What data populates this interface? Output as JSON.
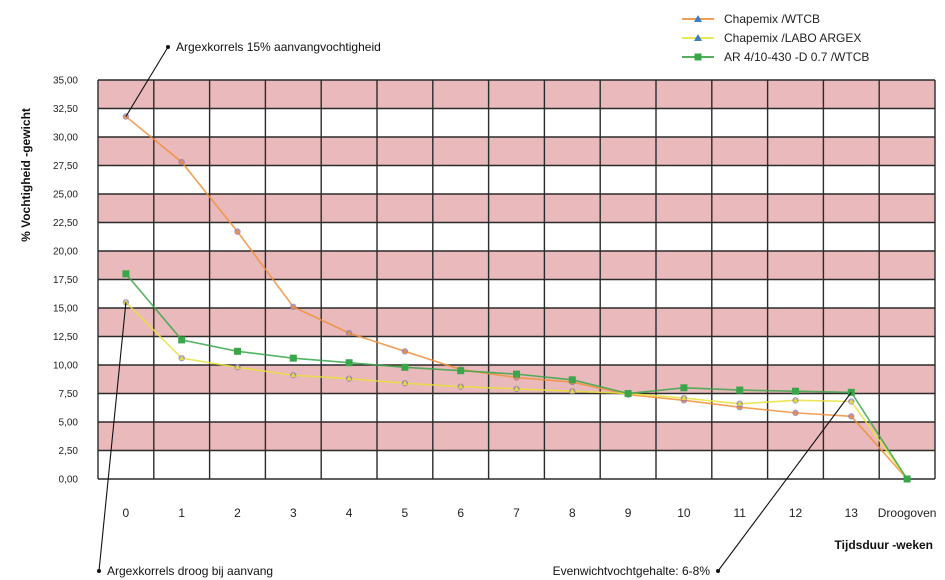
{
  "chart_data": {
    "type": "line",
    "title": "",
    "xlabel": "Tijdsduur -weken",
    "ylabel": "% Vochtigheid -gewicht",
    "categories": [
      "0",
      "1",
      "2",
      "3",
      "4",
      "5",
      "6",
      "7",
      "8",
      "9",
      "10",
      "11",
      "12",
      "13",
      "Droogoven"
    ],
    "ylim": [
      0,
      35
    ],
    "yticks": [
      "0,00",
      "2,50",
      "5,00",
      "7,50",
      "10,00",
      "12,50",
      "15,00",
      "17,50",
      "20,00",
      "22,50",
      "25,00",
      "27,50",
      "30,00",
      "32,50",
      "35,00"
    ],
    "grid": true,
    "legend_position": "top-right",
    "series": [
      {
        "name": "Chapemix /WTCB",
        "color": "#f0903a",
        "marker": "triangle",
        "values": [
          31.8,
          27.8,
          21.7,
          15.1,
          12.8,
          11.2,
          9.6,
          8.9,
          8.5,
          7.4,
          6.9,
          6.3,
          5.8,
          5.5,
          0.0
        ]
      },
      {
        "name": "Chapemix /LABO ARGEX",
        "color": "#e8e23a",
        "marker": "triangle",
        "values": [
          15.5,
          10.6,
          9.8,
          9.1,
          8.8,
          8.4,
          8.1,
          7.9,
          7.7,
          7.5,
          7.1,
          6.6,
          6.9,
          6.8,
          0.0
        ]
      },
      {
        "name": "AR 4/10-430 -D 0.7 /WTCB",
        "color": "#3aa64a",
        "marker": "square",
        "values": [
          18.0,
          12.2,
          11.2,
          10.6,
          10.2,
          9.8,
          9.5,
          9.2,
          8.7,
          7.5,
          8.0,
          7.8,
          7.7,
          7.6,
          0.0
        ]
      }
    ],
    "annotations": [
      {
        "text": "Argexkorrels 15% aanvangvochtigheid",
        "target_x": "0",
        "target_y": 31.8
      },
      {
        "text": "Argexkorrels droog bij aanvang",
        "target_x": "0",
        "target_y": 15.5
      },
      {
        "text": "Evenwichtvochtgehalte: 6-8%",
        "target_x": "13",
        "target_y": 7.6
      }
    ]
  },
  "colors": {
    "band_pink": "#e9b9bb",
    "grid_line": "#2b2b2b",
    "marker_purple": "#8e7ab8"
  }
}
